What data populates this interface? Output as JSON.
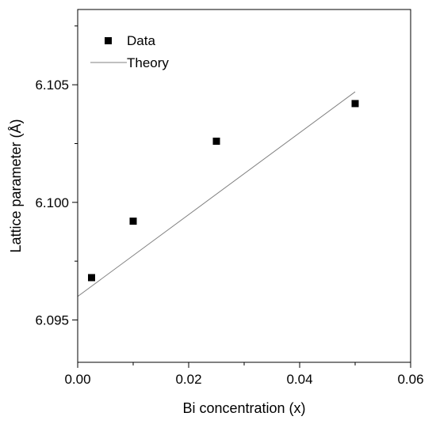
{
  "chart_data": {
    "type": "scatter",
    "xlabel": "Bi concentration (x)",
    "ylabel": "Lattice parameter (Å)",
    "xlim": [
      0.0,
      0.06
    ],
    "ylim": [
      6.0932,
      6.1082
    ],
    "x_ticks": [
      "0.00",
      "0.02",
      "0.04",
      "0.06"
    ],
    "y_ticks": [
      "6.095",
      "6.100",
      "6.105"
    ],
    "legend": {
      "position": "top-left",
      "entries": [
        {
          "label": "Data",
          "marker": "square"
        },
        {
          "label": "Theory",
          "marker": "line"
        }
      ]
    },
    "series": [
      {
        "name": "Data",
        "kind": "scatter",
        "color": "#000000",
        "points": [
          {
            "x": 0.0025,
            "y": 6.0968
          },
          {
            "x": 0.01,
            "y": 6.0992
          },
          {
            "x": 0.025,
            "y": 6.1026
          },
          {
            "x": 0.05,
            "y": 6.1042
          }
        ]
      },
      {
        "name": "Theory",
        "kind": "line",
        "color": "#808080",
        "points": [
          {
            "x": 0.0,
            "y": 6.096
          },
          {
            "x": 0.05,
            "y": 6.1047
          }
        ]
      }
    ],
    "grid": false,
    "minor_ticks": true
  }
}
